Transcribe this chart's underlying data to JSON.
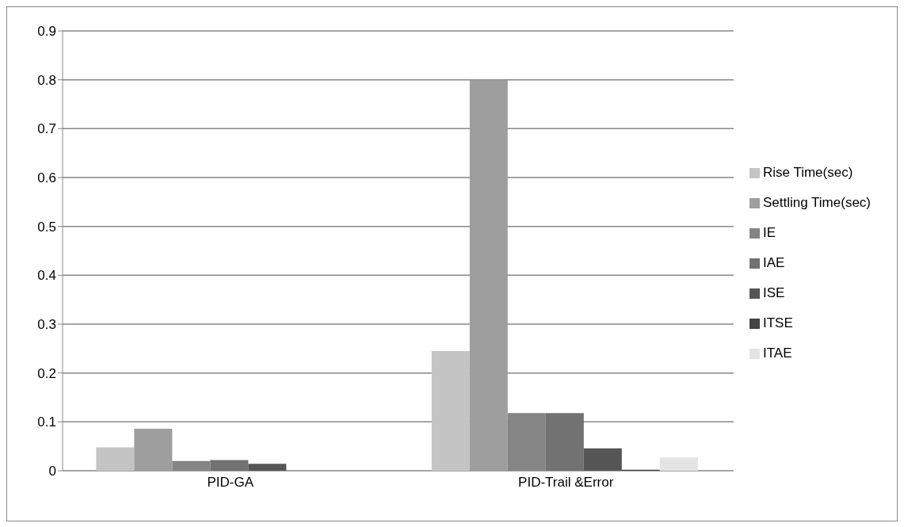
{
  "chart_data": {
    "type": "bar",
    "categories": [
      "PID-GA",
      "PID-Trail &Error"
    ],
    "series": [
      {
        "name": "Rise Time(sec)",
        "color": "#c4c4c4",
        "values": [
          0.048,
          0.245
        ]
      },
      {
        "name": "Settling Time(sec)",
        "color": "#9e9e9e",
        "values": [
          0.086,
          0.8
        ]
      },
      {
        "name": "IE",
        "color": "#858585",
        "values": [
          0.02,
          0.118
        ]
      },
      {
        "name": "IAE",
        "color": "#727272",
        "values": [
          0.022,
          0.118
        ]
      },
      {
        "name": "ISE",
        "color": "#555555",
        "values": [
          0.014,
          0.046
        ]
      },
      {
        "name": "ITSE",
        "color": "#444444",
        "values": [
          0,
          0.002
        ]
      },
      {
        "name": "ITAE",
        "color": "#e4e4e4",
        "values": [
          0,
          0.027
        ]
      }
    ],
    "ylim": [
      0,
      0.9
    ],
    "yticks": [
      0,
      0.1,
      0.2,
      0.3,
      0.4,
      0.5,
      0.6,
      0.7,
      0.8,
      0.9
    ],
    "grid": "y",
    "legend": "right"
  }
}
